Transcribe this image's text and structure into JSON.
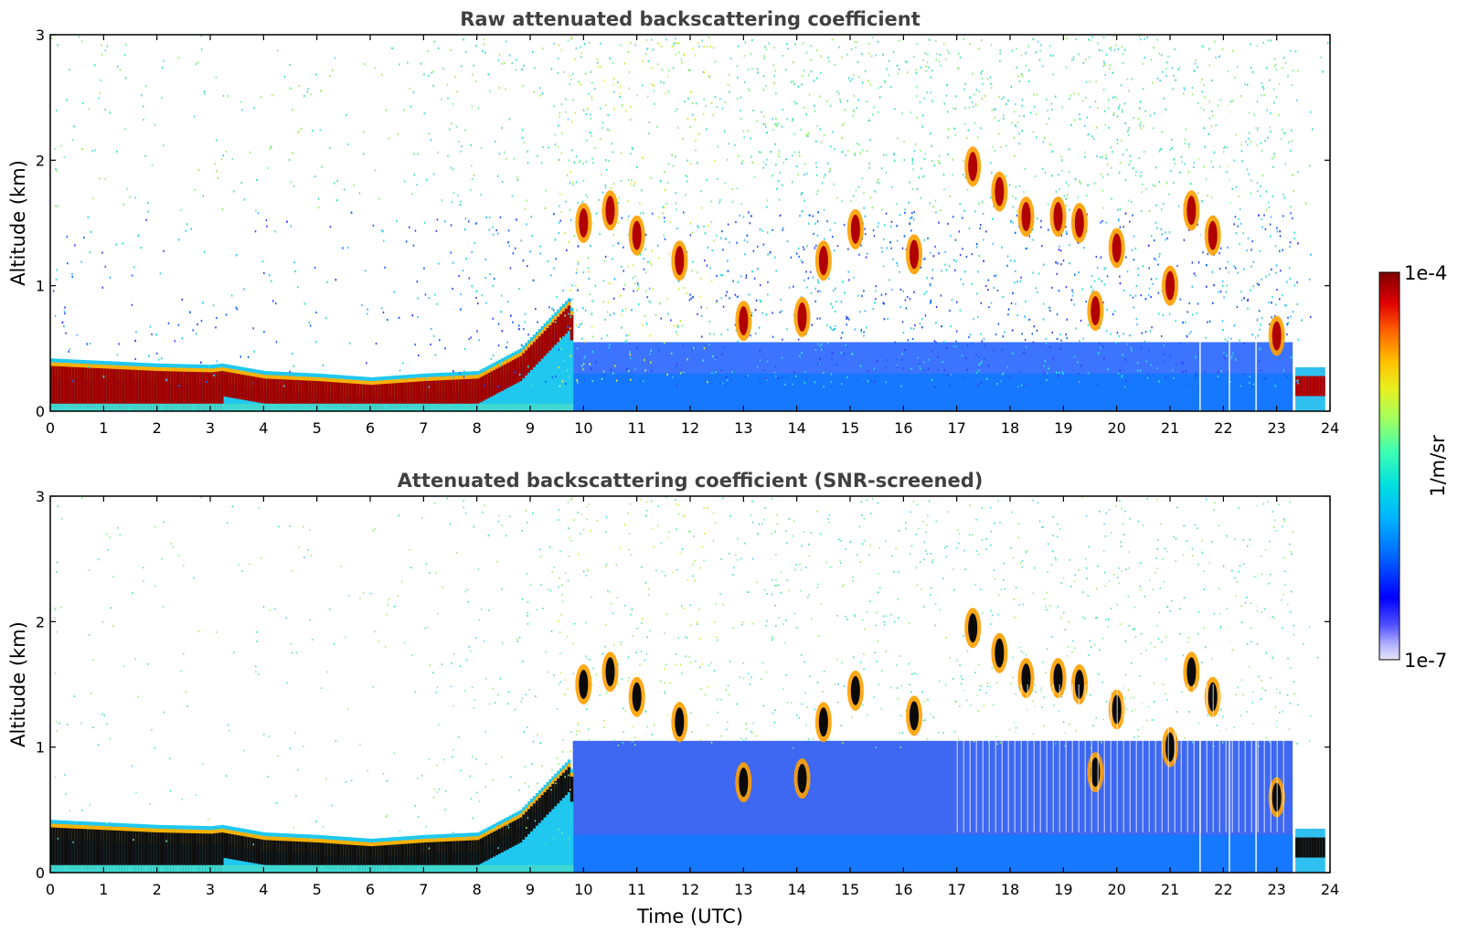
{
  "chart_data": [
    {
      "type": "heatmap",
      "title": "Raw attenuated backscattering coefficient",
      "ylabel": "Altitude (km)",
      "xlabel": "",
      "xlim": [
        0,
        24
      ],
      "ylim": [
        0,
        3
      ],
      "x_ticks": [
        "0",
        "1",
        "2",
        "3",
        "4",
        "5",
        "6",
        "7",
        "8",
        "9",
        "10",
        "11",
        "12",
        "13",
        "14",
        "15",
        "16",
        "17",
        "18",
        "19",
        "20",
        "21",
        "22",
        "23",
        "24"
      ],
      "y_ticks": [
        "0",
        "1",
        "2",
        "3"
      ],
      "color_scale": "log",
      "features": {
        "boundary_layer_top_km": [
          [
            0,
            0.42
          ],
          [
            1,
            0.4
          ],
          [
            2,
            0.38
          ],
          [
            3,
            0.37
          ],
          [
            3.2,
            0.38
          ],
          [
            4,
            0.32
          ],
          [
            5,
            0.3
          ],
          [
            6,
            0.27
          ],
          [
            7,
            0.3
          ],
          [
            8,
            0.32
          ],
          [
            8.8,
            0.5
          ],
          [
            9.7,
            0.9
          ],
          [
            10,
            0.45
          ],
          [
            12,
            0.5
          ],
          [
            16,
            0.5
          ],
          [
            20,
            0.55
          ],
          [
            23.3,
            0.6
          ],
          [
            23.4,
            0.35
          ],
          [
            23.9,
            0.35
          ]
        ],
        "cloud_patches": [
          {
            "t": 10.0,
            "alt": 1.5
          },
          {
            "t": 10.5,
            "alt": 1.6
          },
          {
            "t": 11.0,
            "alt": 1.4
          },
          {
            "t": 11.8,
            "alt": 1.2
          },
          {
            "t": 13.0,
            "alt": 0.72
          },
          {
            "t": 14.1,
            "alt": 0.75
          },
          {
            "t": 14.5,
            "alt": 1.2
          },
          {
            "t": 15.1,
            "alt": 1.45
          },
          {
            "t": 16.2,
            "alt": 1.25
          },
          {
            "t": 17.3,
            "alt": 1.95
          },
          {
            "t": 17.8,
            "alt": 1.75
          },
          {
            "t": 18.3,
            "alt": 1.55
          },
          {
            "t": 18.9,
            "alt": 1.55
          },
          {
            "t": 19.3,
            "alt": 1.5
          },
          {
            "t": 19.6,
            "alt": 0.8
          },
          {
            "t": 20.0,
            "alt": 1.3
          },
          {
            "t": 21.0,
            "alt": 1.0
          },
          {
            "t": 21.4,
            "alt": 1.6
          },
          {
            "t": 21.8,
            "alt": 1.4
          },
          {
            "t": 23.0,
            "alt": 0.6
          }
        ]
      }
    },
    {
      "type": "heatmap",
      "title": "Attenuated backscattering coefficient (SNR-screened)",
      "ylabel": "Altitude (km)",
      "xlabel": "Time (UTC)",
      "xlim": [
        0,
        24
      ],
      "ylim": [
        0,
        3
      ],
      "x_ticks": [
        "0",
        "1",
        "2",
        "3",
        "4",
        "5",
        "6",
        "7",
        "8",
        "9",
        "10",
        "11",
        "12",
        "13",
        "14",
        "15",
        "16",
        "17",
        "18",
        "19",
        "20",
        "21",
        "22",
        "23",
        "24"
      ],
      "y_ticks": [
        "0",
        "1",
        "2",
        "3"
      ],
      "color_scale": "log"
    }
  ],
  "colorbar": {
    "label": "1/m/sr",
    "max_label": "1e-4",
    "min_label": "1e-7",
    "colors": [
      "#e6e6f5",
      "#b0b0ff",
      "#5050ff",
      "#0000ff",
      "#0040ff",
      "#0080ff",
      "#00c0ff",
      "#00e0e0",
      "#40ffb0",
      "#a0ff60",
      "#e0ff20",
      "#ffe000",
      "#ff9000",
      "#ff3000",
      "#d00000",
      "#800000"
    ]
  }
}
